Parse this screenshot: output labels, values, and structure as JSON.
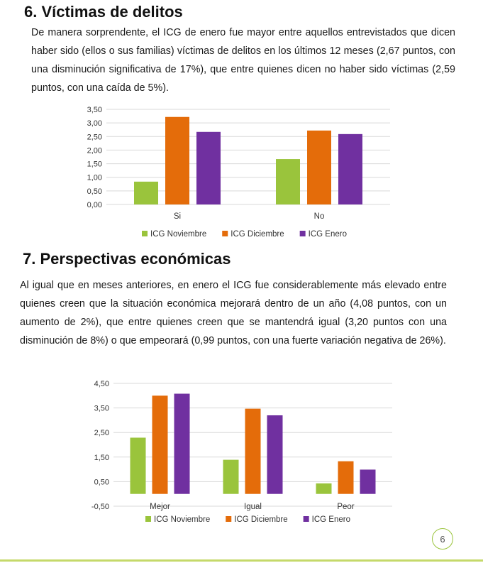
{
  "section6": {
    "title": "6. Víctimas de delitos",
    "body": "De manera sorprendente, el ICG de enero fue mayor entre aquellos entrevistados que dicen haber sido (ellos o sus familias) víctimas de delitos en los últimos 12 meses (2,67 puntos, con una disminución significativa de 17%), que entre quienes dicen no haber sido víctimas (2,59 puntos, con una caída de 5%)."
  },
  "section7": {
    "title": "7. Perspectivas económicas",
    "body": "Al igual que en meses anteriores, en enero el ICG fue considerablemente más elevado entre quienes creen que la situación económica mejorará dentro de un año (4,08 puntos, con un aumento de 2%), que entre quienes creen que se mantendrá igual (3,20 puntos con una disminución de 8%) o que empeorará (0,99 puntos, con una fuerte variación negativa de 26%)."
  },
  "page_number": "6",
  "colors": {
    "noviembre": "#9ac43c",
    "diciembre": "#e46c0a",
    "enero": "#7030a0",
    "grid": "#d9d9d9",
    "footer": "#c5d96a"
  },
  "chart_data": [
    {
      "type": "bar",
      "categories": [
        "Si",
        "No"
      ],
      "series": [
        {
          "name": "ICG Noviembre",
          "values": [
            0.84,
            1.67
          ]
        },
        {
          "name": "ICG Diciembre",
          "values": [
            3.22,
            2.72
          ]
        },
        {
          "name": "ICG Enero",
          "values": [
            2.67,
            2.59
          ]
        }
      ],
      "ylim": [
        0,
        3.5
      ],
      "yticks": [
        "0,00",
        "0,50",
        "1,00",
        "1,50",
        "2,00",
        "2,50",
        "3,00",
        "3,50"
      ],
      "grid": true,
      "legend_position": "bottom"
    },
    {
      "type": "bar",
      "categories": [
        "Mejor",
        "Igual",
        "Peor"
      ],
      "series": [
        {
          "name": "ICG Noviembre",
          "values": [
            2.29,
            1.39,
            0.43
          ]
        },
        {
          "name": "ICG Diciembre",
          "values": [
            4.0,
            3.47,
            1.33
          ]
        },
        {
          "name": "ICG Enero",
          "values": [
            4.08,
            3.2,
            0.99
          ]
        }
      ],
      "ylim": [
        -0.5,
        4.5
      ],
      "yticks": [
        "-0,50",
        "0,50",
        "1,50",
        "2,50",
        "3,50",
        "4,50"
      ],
      "grid": true,
      "legend_position": "bottom"
    }
  ]
}
